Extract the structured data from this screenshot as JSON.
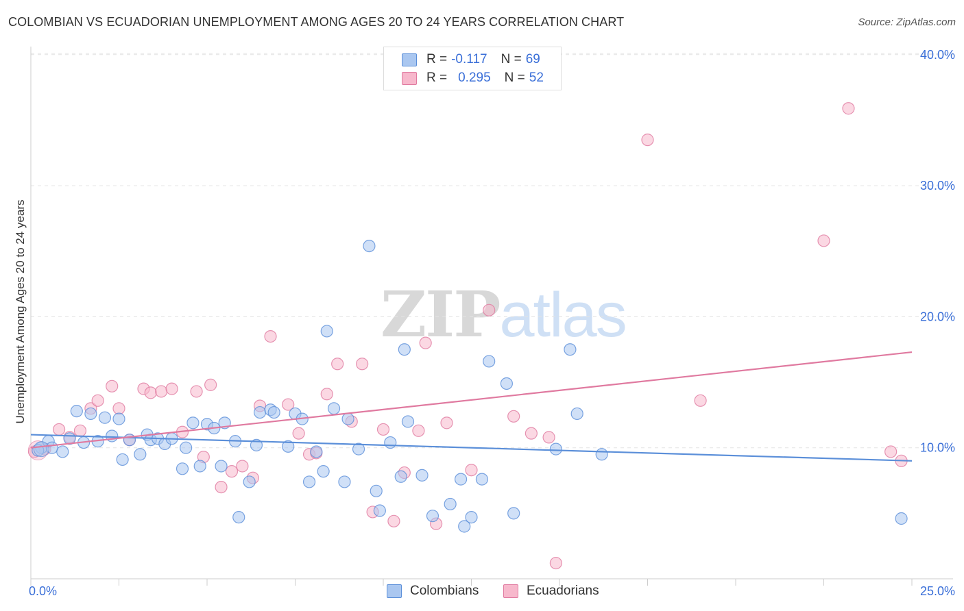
{
  "title": "COLOMBIAN VS ECUADORIAN UNEMPLOYMENT AMONG AGES 20 TO 24 YEARS CORRELATION CHART",
  "source": "Source: ZipAtlas.com",
  "watermark": {
    "zip": "ZIP",
    "atlas": "atlas"
  },
  "legend": {
    "rows": [
      {
        "r_label": "R =",
        "r_value": "-0.117",
        "n_label": "N =",
        "n_value": "69",
        "color": "#aac7f0"
      },
      {
        "r_label": "R =",
        "r_value": "0.295",
        "n_label": "N =",
        "n_value": "52",
        "color": "#f7b8cc"
      }
    ]
  },
  "bottom_legend": [
    "Colombians",
    "Ecuadorians"
  ],
  "chart_data": {
    "type": "scatter",
    "title": "COLOMBIAN VS ECUADORIAN UNEMPLOYMENT AMONG AGES 20 TO 24 YEARS CORRELATION CHART",
    "xlabel": "",
    "ylabel": "Unemployment Among Ages 20 to 24 years",
    "xlim": [
      0,
      25
    ],
    "ylim": [
      0,
      40
    ],
    "x_tick_labels": [
      "0.0%",
      "25.0%"
    ],
    "y_ticks": [
      10,
      20,
      30,
      40
    ],
    "y_tick_labels": [
      "10.0%",
      "20.0%",
      "30.0%",
      "40.0%"
    ],
    "grid": true,
    "legend_position": "top-center",
    "series": [
      {
        "name": "Colombians",
        "color": "#5b8fd9",
        "fill": "#aac7f0",
        "trend": {
          "x": [
            0,
            25
          ],
          "y": [
            11.0,
            9.0
          ]
        },
        "points": [
          [
            0.3,
            10.0
          ],
          [
            0.5,
            10.5
          ],
          [
            0.6,
            10.0
          ],
          [
            0.9,
            9.7
          ],
          [
            1.1,
            10.7
          ],
          [
            1.3,
            12.8
          ],
          [
            1.5,
            10.4
          ],
          [
            1.7,
            12.6
          ],
          [
            1.9,
            10.5
          ],
          [
            2.1,
            12.3
          ],
          [
            2.3,
            10.9
          ],
          [
            2.5,
            12.2
          ],
          [
            2.6,
            9.1
          ],
          [
            2.8,
            10.6
          ],
          [
            3.1,
            9.5
          ],
          [
            3.3,
            11.0
          ],
          [
            3.4,
            10.6
          ],
          [
            3.6,
            10.7
          ],
          [
            3.8,
            10.3
          ],
          [
            4.0,
            10.7
          ],
          [
            4.3,
            8.4
          ],
          [
            4.4,
            10.0
          ],
          [
            4.6,
            11.9
          ],
          [
            4.8,
            8.6
          ],
          [
            5.0,
            11.8
          ],
          [
            5.2,
            11.5
          ],
          [
            5.4,
            8.6
          ],
          [
            5.5,
            11.9
          ],
          [
            5.8,
            10.5
          ],
          [
            5.9,
            4.7
          ],
          [
            6.2,
            7.4
          ],
          [
            6.4,
            10.2
          ],
          [
            6.5,
            12.7
          ],
          [
            6.8,
            12.9
          ],
          [
            6.9,
            12.7
          ],
          [
            7.3,
            10.1
          ],
          [
            7.5,
            12.6
          ],
          [
            7.7,
            12.2
          ],
          [
            7.9,
            7.4
          ],
          [
            8.1,
            9.7
          ],
          [
            8.3,
            8.2
          ],
          [
            8.4,
            18.9
          ],
          [
            8.6,
            13.0
          ],
          [
            8.9,
            7.4
          ],
          [
            9.0,
            12.2
          ],
          [
            9.3,
            9.9
          ],
          [
            9.6,
            25.4
          ],
          [
            9.8,
            6.7
          ],
          [
            9.9,
            5.2
          ],
          [
            10.2,
            10.4
          ],
          [
            10.5,
            7.8
          ],
          [
            10.6,
            17.5
          ],
          [
            10.7,
            12.0
          ],
          [
            11.1,
            7.9
          ],
          [
            11.4,
            4.8
          ],
          [
            11.9,
            5.7
          ],
          [
            12.3,
            4.0
          ],
          [
            12.2,
            7.6
          ],
          [
            12.5,
            4.7
          ],
          [
            12.8,
            7.6
          ],
          [
            13.0,
            16.6
          ],
          [
            13.5,
            14.9
          ],
          [
            13.7,
            5.0
          ],
          [
            14.9,
            9.9
          ],
          [
            15.3,
            17.5
          ],
          [
            15.5,
            12.6
          ],
          [
            16.2,
            9.5
          ],
          [
            24.7,
            4.6
          ],
          [
            0.2,
            9.8
          ]
        ]
      },
      {
        "name": "Ecuadorians",
        "color": "#e07aa0",
        "fill": "#f7b8cc",
        "trend": {
          "x": [
            0,
            25
          ],
          "y": [
            10.0,
            17.3
          ]
        },
        "points": [
          [
            0.1,
            9.7
          ],
          [
            0.4,
            9.9
          ],
          [
            0.8,
            11.4
          ],
          [
            1.1,
            10.8
          ],
          [
            1.4,
            11.3
          ],
          [
            1.7,
            13.0
          ],
          [
            1.9,
            13.6
          ],
          [
            2.3,
            14.7
          ],
          [
            2.5,
            13.0
          ],
          [
            2.8,
            10.6
          ],
          [
            3.2,
            14.5
          ],
          [
            3.4,
            14.2
          ],
          [
            3.7,
            14.3
          ],
          [
            4.0,
            14.5
          ],
          [
            4.3,
            11.2
          ],
          [
            4.7,
            14.3
          ],
          [
            4.9,
            9.3
          ],
          [
            5.1,
            14.8
          ],
          [
            5.4,
            7.0
          ],
          [
            5.7,
            8.2
          ],
          [
            6.0,
            8.6
          ],
          [
            6.3,
            7.7
          ],
          [
            6.5,
            13.2
          ],
          [
            6.8,
            18.5
          ],
          [
            7.3,
            13.3
          ],
          [
            7.6,
            11.1
          ],
          [
            7.9,
            9.5
          ],
          [
            8.1,
            9.6
          ],
          [
            8.4,
            14.1
          ],
          [
            8.7,
            16.4
          ],
          [
            9.1,
            12.0
          ],
          [
            9.4,
            16.4
          ],
          [
            9.7,
            5.1
          ],
          [
            10.0,
            11.4
          ],
          [
            10.3,
            4.4
          ],
          [
            10.6,
            8.1
          ],
          [
            11.0,
            11.3
          ],
          [
            11.2,
            18.0
          ],
          [
            11.5,
            4.2
          ],
          [
            11.8,
            11.9
          ],
          [
            12.5,
            8.3
          ],
          [
            13.0,
            20.5
          ],
          [
            13.7,
            12.4
          ],
          [
            14.2,
            11.1
          ],
          [
            14.7,
            10.8
          ],
          [
            14.9,
            1.2
          ],
          [
            17.5,
            33.5
          ],
          [
            19.0,
            13.6
          ],
          [
            22.5,
            25.8
          ],
          [
            23.2,
            35.9
          ],
          [
            24.4,
            9.7
          ],
          [
            24.7,
            9.0
          ]
        ]
      }
    ]
  }
}
